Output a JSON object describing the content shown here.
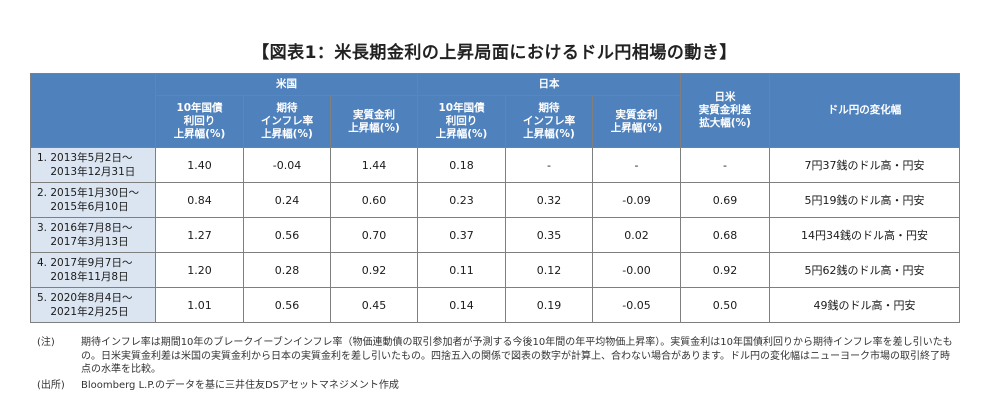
{
  "title": "【図表1：米長期金利の上昇局面におけるドル円相場の動き】",
  "header": {
    "group_us": "米国",
    "group_jp": "日本",
    "us_10y": "10年国債\n利回り\n上昇幅(%)",
    "us_inflation": "期待\nインフレ率\n上昇幅(%)",
    "us_real": "実質金利\n上昇幅(%)",
    "jp_10y": "10年国債\n利回り\n上昇幅(%)",
    "jp_inflation": "期待\nインフレ率\n上昇幅(%)",
    "jp_real": "実質金利\n上昇幅(%)",
    "spread": "日米\n実質金利差\n拡大幅(%)",
    "fx": "ドル円の変化幅"
  },
  "rows": [
    {
      "period": "1. 2013年5月2日～\n    2013年12月31日",
      "us_10y": "1.40",
      "us_inflation": "-0.04",
      "us_real": "1.44",
      "jp_10y": "0.18",
      "jp_inflation": "-",
      "jp_real": "-",
      "spread": "-",
      "fx": "7円37銭のドル高・円安"
    },
    {
      "period": "2. 2015年1月30日～\n    2015年6月10日",
      "us_10y": "0.84",
      "us_inflation": "0.24",
      "us_real": "0.60",
      "jp_10y": "0.23",
      "jp_inflation": "0.32",
      "jp_real": "-0.09",
      "spread": "0.69",
      "fx": "5円19銭のドル高・円安"
    },
    {
      "period": "3. 2016年7月8日～\n    2017年3月13日",
      "us_10y": "1.27",
      "us_inflation": "0.56",
      "us_real": "0.70",
      "jp_10y": "0.37",
      "jp_inflation": "0.35",
      "jp_real": "0.02",
      "spread": "0.68",
      "fx": "14円34銭のドル高・円安"
    },
    {
      "period": "4. 2017年9月7日～\n    2018年11月8日",
      "us_10y": "1.20",
      "us_inflation": "0.28",
      "us_real": "0.92",
      "jp_10y": "0.11",
      "jp_inflation": "0.12",
      "jp_real": "-0.00",
      "spread": "0.92",
      "fx": "5円62銭のドル高・円安"
    },
    {
      "period": "5. 2020年8月4日～\n    2021年2月25日",
      "us_10y": "1.01",
      "us_inflation": "0.56",
      "us_real": "0.45",
      "jp_10y": "0.14",
      "jp_inflation": "0.19",
      "jp_real": "-0.05",
      "spread": "0.50",
      "fx": "49銭のドル高・円安"
    }
  ],
  "notes": {
    "note_label": "(注)",
    "note_text": "期待インフレ率は期間10年のブレークイーブンインフレ率（物価連動債の取引参加者が予測する今後10年間の年平均物価上昇率）。実質金利は10年国債利回りから期待インフレ率を差し引いたもの。日米実質金利差は米国の実質金利から日本の実質金利を差し引いたもの。四捨五入の関係で図表の数字が計算上、合わない場合があります。ドル円の変化幅はニューヨーク市場の取引終了時点の水準を比較。",
    "source_label": "(出所)",
    "source_text": "Bloomberg L.P.のデータを基に三井住友DSアセットマネジメント作成"
  }
}
